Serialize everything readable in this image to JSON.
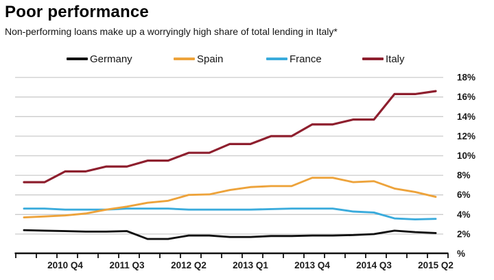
{
  "header": {
    "title": "Poor performance",
    "subtitle": "Non-performing loans make up a worryingly high share of total lending in Italy*"
  },
  "chart_data": {
    "type": "line",
    "title": "Poor performance",
    "subtitle": "Non-performing loans make up a worryingly high share of total lending in Italy*",
    "ylabel": "%",
    "ylim": [
      0,
      18
    ],
    "grid": "horizontal",
    "legend_position": "top",
    "categories": [
      "2010 Q2",
      "2010 Q3",
      "2010 Q4",
      "2011 Q1",
      "2011 Q2",
      "2011 Q3",
      "2011 Q4",
      "2012 Q1",
      "2012 Q2",
      "2012 Q3",
      "2012 Q4",
      "2013 Q1",
      "2013 Q2",
      "2013 Q3",
      "2013 Q4",
      "2014 Q1",
      "2014 Q2",
      "2014 Q3",
      "2014 Q4",
      "2015 Q1",
      "2015 Q2"
    ],
    "x_tick_labels": [
      "2010 Q4",
      "2011 Q3",
      "2012 Q2",
      "2013 Q1",
      "2013 Q4",
      "2014 Q3",
      "2015 Q2"
    ],
    "y_ticks": [
      {
        "value": 18,
        "label": "18%"
      },
      {
        "value": 16,
        "label": "16%"
      },
      {
        "value": 14,
        "label": "14%"
      },
      {
        "value": 12,
        "label": "12%"
      },
      {
        "value": 10,
        "label": "10%"
      },
      {
        "value": 8,
        "label": "8%"
      },
      {
        "value": 6,
        "label": "6%"
      },
      {
        "value": 4,
        "label": "4%"
      },
      {
        "value": 2,
        "label": "2%"
      },
      {
        "value": 0,
        "label": "%"
      }
    ],
    "series": [
      {
        "name": "Germany",
        "color": "#101010",
        "values": [
          2.4,
          2.35,
          2.3,
          2.25,
          2.25,
          2.3,
          1.5,
          1.5,
          1.85,
          1.85,
          1.7,
          1.7,
          1.8,
          1.8,
          1.85,
          1.85,
          1.9,
          2.0,
          2.35,
          2.2,
          2.1
        ]
      },
      {
        "name": "Spain",
        "color": "#eda33b",
        "values": [
          3.7,
          3.8,
          3.9,
          4.1,
          4.5,
          4.8,
          5.2,
          5.4,
          6.0,
          6.05,
          6.5,
          6.8,
          6.9,
          6.9,
          7.75,
          7.75,
          7.3,
          7.4,
          6.65,
          6.3,
          5.8
        ]
      },
      {
        "name": "France",
        "color": "#3aabdc",
        "values": [
          4.6,
          4.6,
          4.5,
          4.5,
          4.5,
          4.6,
          4.6,
          4.6,
          4.5,
          4.5,
          4.5,
          4.5,
          4.55,
          4.6,
          4.6,
          4.6,
          4.3,
          4.2,
          3.6,
          3.5,
          3.55
        ]
      },
      {
        "name": "Italy",
        "color": "#8e1f2e",
        "values": [
          7.3,
          7.3,
          8.4,
          8.4,
          8.9,
          8.9,
          9.5,
          9.5,
          10.3,
          10.3,
          11.2,
          11.2,
          12.0,
          12.0,
          13.2,
          13.2,
          13.7,
          13.7,
          16.3,
          16.3,
          16.6
        ]
      }
    ]
  }
}
